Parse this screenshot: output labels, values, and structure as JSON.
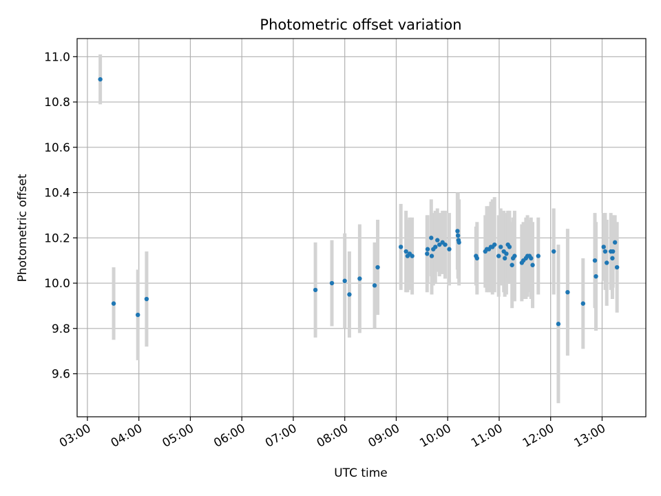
{
  "chart_data": {
    "type": "scatter",
    "title": "Photometric offset variation",
    "xlabel": "UTC time",
    "ylabel": "Photometric offset",
    "xlim": [
      2.8,
      13.85
    ],
    "ylim": [
      9.41,
      11.08
    ],
    "grid": true,
    "x_ticks": [
      {
        "value": 3,
        "label": "03:00"
      },
      {
        "value": 4,
        "label": "04:00"
      },
      {
        "value": 5,
        "label": "05:00"
      },
      {
        "value": 6,
        "label": "06:00"
      },
      {
        "value": 7,
        "label": "07:00"
      },
      {
        "value": 8,
        "label": "08:00"
      },
      {
        "value": 9,
        "label": "09:00"
      },
      {
        "value": 10,
        "label": "10:00"
      },
      {
        "value": 11,
        "label": "11:00"
      },
      {
        "value": 12,
        "label": "12:00"
      },
      {
        "value": 13,
        "label": "13:00"
      }
    ],
    "y_ticks": [
      {
        "value": 9.6,
        "label": "9.6"
      },
      {
        "value": 9.8,
        "label": "9.8"
      },
      {
        "value": 10.0,
        "label": "10.0"
      },
      {
        "value": 10.2,
        "label": "10.2"
      },
      {
        "value": 10.4,
        "label": "10.4"
      },
      {
        "value": 10.6,
        "label": "10.6"
      },
      {
        "value": 10.8,
        "label": "10.8"
      },
      {
        "value": 11.0,
        "label": "11.0"
      }
    ],
    "colors": {
      "point": "#1f77b4",
      "errorbar": "#d3d3d3",
      "grid": "#b0b0b0"
    },
    "series": [
      {
        "name": "offset",
        "x_hours": [
          3.25,
          3.51,
          3.98,
          4.15,
          7.43,
          7.75,
          8.0,
          8.09,
          8.29,
          8.58,
          8.64,
          9.09,
          9.19,
          9.22,
          9.26,
          9.31,
          9.6,
          9.61,
          9.68,
          9.69,
          9.72,
          9.76,
          9.8,
          9.84,
          9.9,
          9.95,
          10.03,
          10.19,
          10.2,
          10.21,
          10.22,
          10.55,
          10.57,
          10.73,
          10.76,
          10.8,
          10.84,
          10.87,
          10.91,
          10.99,
          11.03,
          11.09,
          11.11,
          11.14,
          11.17,
          11.2,
          11.25,
          11.27,
          11.3,
          11.44,
          11.47,
          11.52,
          11.55,
          11.59,
          11.62,
          11.65,
          11.76,
          12.06,
          12.15,
          12.33,
          12.63,
          12.86,
          12.88,
          13.03,
          13.06,
          13.09,
          13.17,
          13.2,
          13.21,
          13.25,
          13.29
        ],
        "y": [
          10.9,
          9.91,
          9.86,
          9.93,
          9.97,
          10.0,
          10.01,
          9.95,
          10.02,
          9.99,
          10.07,
          10.16,
          10.14,
          10.12,
          10.13,
          10.12,
          10.13,
          10.15,
          10.2,
          10.12,
          10.15,
          10.16,
          10.19,
          10.17,
          10.18,
          10.17,
          10.15,
          10.23,
          10.21,
          10.19,
          10.18,
          10.12,
          10.11,
          10.14,
          10.15,
          10.15,
          10.16,
          10.16,
          10.17,
          10.12,
          10.16,
          10.14,
          10.11,
          10.13,
          10.17,
          10.16,
          10.08,
          10.11,
          10.12,
          10.09,
          10.1,
          10.11,
          10.12,
          10.12,
          10.11,
          10.08,
          10.12,
          10.14,
          9.82,
          9.96,
          9.91,
          10.1,
          10.03,
          10.16,
          10.14,
          10.09,
          10.14,
          10.11,
          10.14,
          10.18,
          10.07
        ],
        "err": [
          0.11,
          0.16,
          0.2,
          0.21,
          0.21,
          0.19,
          0.21,
          0.19,
          0.24,
          0.19,
          0.21,
          0.19,
          0.18,
          0.16,
          0.16,
          0.17,
          0.17,
          0.15,
          0.17,
          0.17,
          0.16,
          0.16,
          0.14,
          0.14,
          0.14,
          0.15,
          0.16,
          0.17,
          0.19,
          0.17,
          0.19,
          0.13,
          0.16,
          0.16,
          0.19,
          0.19,
          0.2,
          0.21,
          0.21,
          0.18,
          0.17,
          0.18,
          0.17,
          0.18,
          0.15,
          0.16,
          0.19,
          0.18,
          0.2,
          0.17,
          0.17,
          0.18,
          0.18,
          0.16,
          0.18,
          0.19,
          0.17,
          0.19,
          0.35,
          0.28,
          0.2,
          0.21,
          0.24,
          0.15,
          0.17,
          0.19,
          0.17,
          0.18,
          0.16,
          0.12,
          0.2
        ]
      }
    ]
  }
}
